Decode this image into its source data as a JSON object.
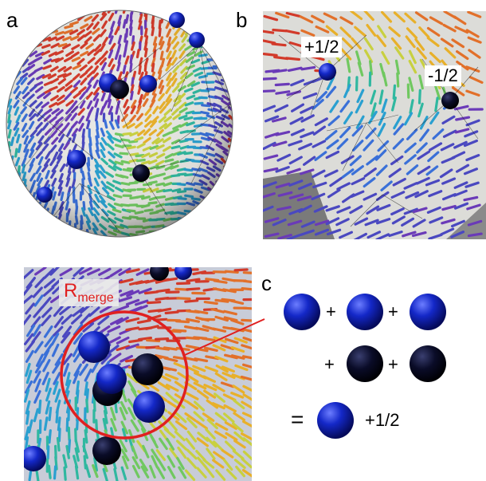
{
  "panels": {
    "a": {
      "letter": "a"
    },
    "b": {
      "letter": "b",
      "label_plus": "+1/2",
      "label_minus": "-1/2"
    },
    "c": {
      "letter": "c",
      "radius_label_main": "R",
      "radius_label_sub": "merge",
      "plus": "+",
      "equals": "=",
      "result_label": "+1/2"
    }
  },
  "colors": {
    "positive_defect": "#1020c8",
    "negative_defect": "#080820",
    "merge_circle": "#e02020"
  }
}
